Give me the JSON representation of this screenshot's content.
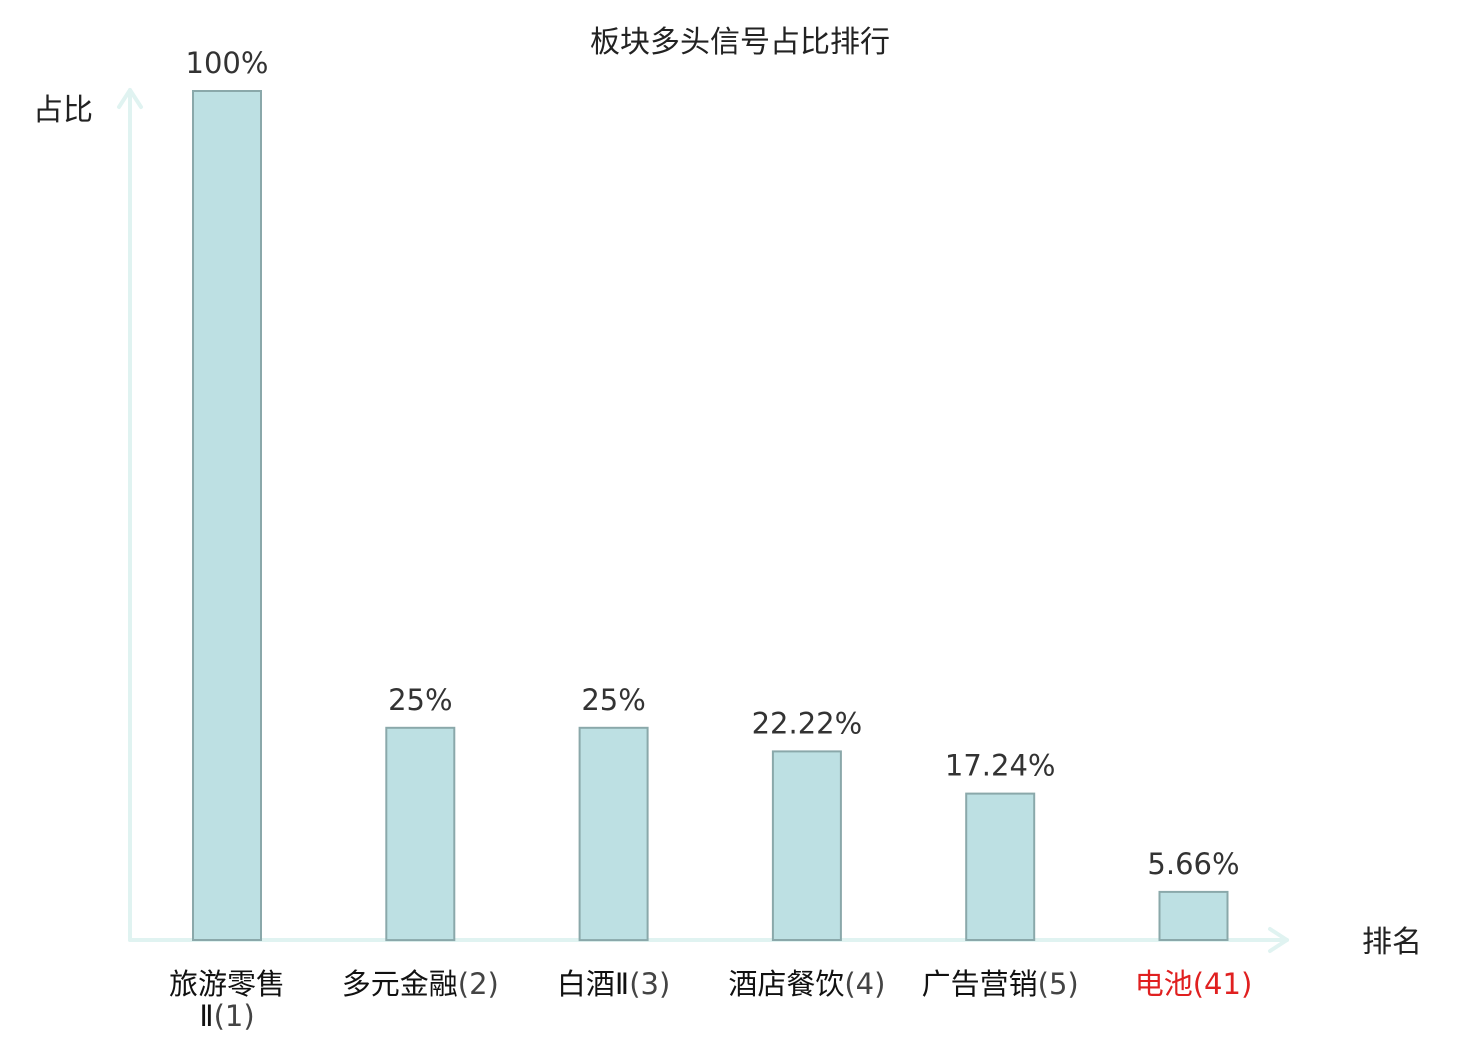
{
  "chart_data": {
    "type": "bar",
    "title": "板块多头信号占比排行",
    "ylabel": "占比",
    "xlabel": "排名",
    "ylim": [
      0,
      100
    ],
    "grid": false,
    "legend": "none",
    "bar_fill": "#bde0e3",
    "bar_stroke": "#8aa8aa",
    "axis_color": "#e0f3f1",
    "text_color": "#333333",
    "highlight_color": "#e02020",
    "categories": [
      {
        "name": "旅游零售Ⅱ",
        "name_lines": [
          "旅游零售",
          "Ⅱ"
        ],
        "rank": "(1)",
        "highlight": false
      },
      {
        "name": "多元金融",
        "rank": "(2)",
        "highlight": false
      },
      {
        "name": "白酒Ⅱ",
        "rank": "(3)",
        "highlight": false
      },
      {
        "name": "酒店餐饮",
        "rank": "(4)",
        "highlight": false
      },
      {
        "name": "广告营销",
        "rank": "(5)",
        "highlight": false
      },
      {
        "name": "电池",
        "rank": "(41)",
        "highlight": true
      }
    ],
    "values": [
      100,
      25,
      25,
      22.22,
      17.24,
      5.66
    ],
    "value_labels": [
      "100%",
      "25%",
      "25%",
      "22.22%",
      "17.24%",
      "5.66%"
    ]
  }
}
